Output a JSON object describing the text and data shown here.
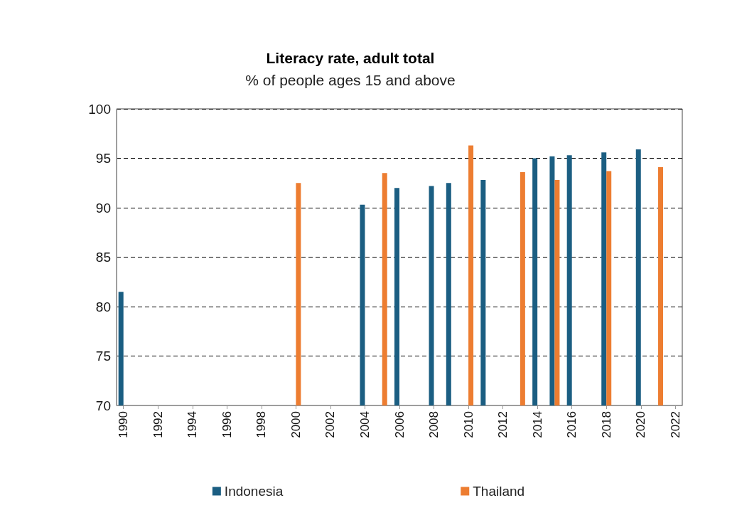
{
  "chart_data": {
    "type": "bar",
    "title": "Literacy rate, adult total",
    "subtitle": "% of people ages 15 and above",
    "series": [
      {
        "name": "Indonesia",
        "color": "#1b5e82",
        "x": [
          1990,
          2004,
          2006,
          2008,
          2009,
          2011,
          2014,
          2015,
          2016,
          2018,
          2020
        ],
        "values": [
          81.5,
          90.3,
          92.0,
          92.2,
          92.5,
          92.8,
          95.0,
          95.2,
          95.3,
          95.6,
          95.9
        ]
      },
      {
        "name": "Thailand",
        "color": "#ed7d31",
        "x": [
          2000,
          2005,
          2010,
          2013,
          2015,
          2018,
          2021
        ],
        "values": [
          92.5,
          93.5,
          96.3,
          93.6,
          92.8,
          93.7,
          94.1
        ]
      }
    ],
    "xlim": [
      1989.6,
      2022.4
    ],
    "xticks": [
      1990,
      1992,
      1994,
      1996,
      1998,
      2000,
      2002,
      2004,
      2006,
      2008,
      2010,
      2012,
      2014,
      2016,
      2018,
      2020,
      2022
    ],
    "ylim": [
      70,
      100
    ],
    "yticks": [
      70,
      75,
      80,
      85,
      90,
      95,
      100
    ],
    "grid": "y",
    "legend": "bottom"
  }
}
